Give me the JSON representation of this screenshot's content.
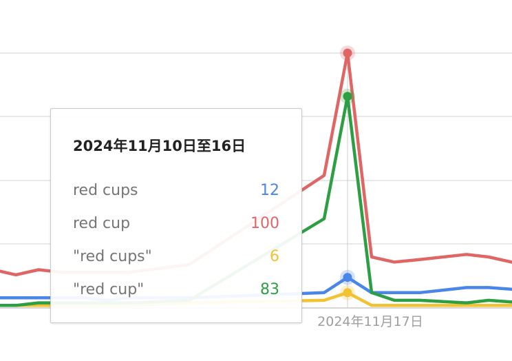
{
  "chart_data": {
    "type": "line",
    "x_tick_label": "2024年11月17日",
    "ylim": [
      0,
      100
    ],
    "grid": true,
    "series": [
      {
        "name": "red cups",
        "color": "#4a86e8",
        "points": [
          [
            0,
            4
          ],
          [
            1,
            4
          ],
          [
            2,
            4
          ],
          [
            3,
            4
          ],
          [
            4,
            4
          ],
          [
            5,
            3
          ],
          [
            6,
            4
          ],
          [
            7,
            4
          ],
          [
            8,
            6
          ],
          [
            9,
            12
          ],
          [
            10,
            6
          ],
          [
            11,
            6
          ],
          [
            12,
            6
          ],
          [
            13,
            8
          ],
          [
            14,
            8
          ],
          [
            15,
            7
          ]
        ]
      },
      {
        "name": "red cup",
        "color": "#e06666",
        "points": [
          [
            0,
            15
          ],
          [
            1,
            13
          ],
          [
            2,
            15
          ],
          [
            3,
            14
          ],
          [
            4,
            14
          ],
          [
            5,
            14
          ],
          [
            6,
            14
          ],
          [
            7,
            17
          ],
          [
            8,
            52
          ],
          [
            9,
            100
          ],
          [
            10,
            20
          ],
          [
            11,
            18
          ],
          [
            12,
            19
          ],
          [
            13,
            21
          ],
          [
            14,
            20
          ],
          [
            15,
            17
          ]
        ]
      },
      {
        "name": "\"red cups\"",
        "color": "#f1c232",
        "points": [
          [
            0,
            1
          ],
          [
            1,
            1
          ],
          [
            2,
            1
          ],
          [
            3,
            1
          ],
          [
            4,
            1
          ],
          [
            5,
            1
          ],
          [
            6,
            1
          ],
          [
            7,
            2
          ],
          [
            8,
            3
          ],
          [
            9,
            6
          ],
          [
            10,
            1
          ],
          [
            11,
            1
          ],
          [
            12,
            1
          ],
          [
            13,
            1
          ],
          [
            14,
            1
          ],
          [
            15,
            1
          ]
        ]
      },
      {
        "name": "\"red cup\"",
        "color": "#2e9e44",
        "points": [
          [
            0,
            1
          ],
          [
            1,
            1
          ],
          [
            2,
            2
          ],
          [
            3,
            2
          ],
          [
            4,
            2
          ],
          [
            5,
            2
          ],
          [
            6,
            2
          ],
          [
            7,
            3
          ],
          [
            8,
            35
          ],
          [
            9,
            83
          ],
          [
            10,
            6
          ],
          [
            11,
            3
          ],
          [
            12,
            3
          ],
          [
            13,
            2
          ],
          [
            14,
            3
          ],
          [
            15,
            2
          ]
        ]
      }
    ],
    "hover_index": 9
  },
  "tooltip": {
    "title": "2024年11月10日至16日",
    "rows": [
      {
        "label": "red cups",
        "value": "12",
        "color": "#4a86e8"
      },
      {
        "label": "red cup",
        "value": "100",
        "color": "#e06666"
      },
      {
        "label": "\"red cups\"",
        "value": "6",
        "color": "#f1c232"
      },
      {
        "label": "\"red cup\"",
        "value": "83",
        "color": "#2e9e44"
      }
    ]
  }
}
